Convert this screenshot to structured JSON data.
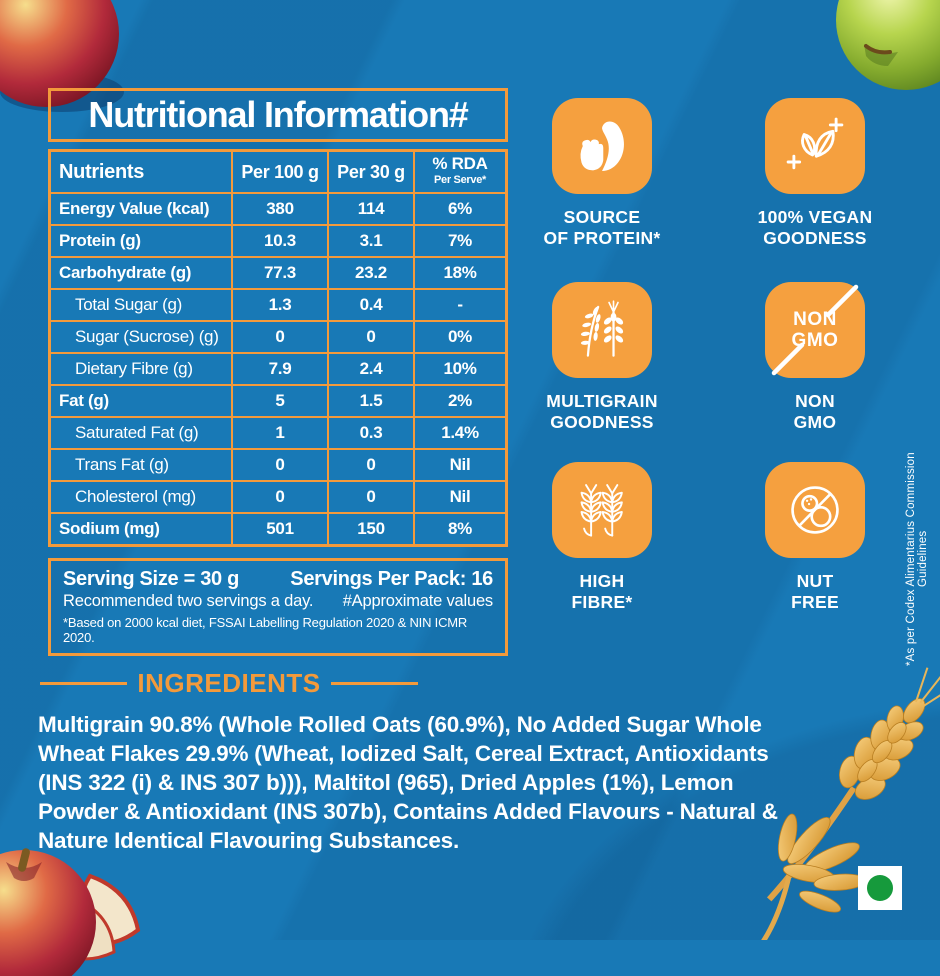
{
  "colors": {
    "background_blue": "#1879B6",
    "accent_orange": "#F39A3B",
    "badge_orange": "#F5A03F",
    "text_white": "#FFFFFF",
    "veg_green": "#169A3C"
  },
  "table": {
    "title": "Nutritional Information#",
    "header": {
      "col0": "Nutrients",
      "col1": "Per 100 g",
      "col2": "Per 30 g",
      "rda_line1": "% RDA",
      "rda_line2": "Per Serve*"
    },
    "rows": [
      {
        "name": "Energy Value (kcal)",
        "per100": "380",
        "per30": "114",
        "rda": "6%",
        "emphasis": true,
        "indent": false
      },
      {
        "name": "Protein (g)",
        "per100": "10.3",
        "per30": "3.1",
        "rda": "7%",
        "emphasis": true,
        "indent": false
      },
      {
        "name": "Carbohydrate (g)",
        "per100": "77.3",
        "per30": "23.2",
        "rda": "18%",
        "emphasis": true,
        "indent": false
      },
      {
        "name": "Total Sugar (g)",
        "per100": "1.3",
        "per30": "0.4",
        "rda": "-",
        "emphasis": false,
        "indent": true
      },
      {
        "name": "Sugar (Sucrose) (g)",
        "per100": "0",
        "per30": "0",
        "rda": "0%",
        "emphasis": false,
        "indent": true
      },
      {
        "name": "Dietary Fibre (g)",
        "per100": "7.9",
        "per30": "2.4",
        "rda": "10%",
        "emphasis": false,
        "indent": true
      },
      {
        "name": "Fat (g)",
        "per100": "5",
        "per30": "1.5",
        "rda": "2%",
        "emphasis": true,
        "indent": false
      },
      {
        "name": "Saturated Fat (g)",
        "per100": "1",
        "per30": "0.3",
        "rda": "1.4%",
        "emphasis": false,
        "indent": true
      },
      {
        "name": "Trans Fat (g)",
        "per100": "0",
        "per30": "0",
        "rda": "Nil",
        "emphasis": false,
        "indent": true
      },
      {
        "name": "Cholesterol (mg)",
        "per100": "0",
        "per30": "0",
        "rda": "Nil",
        "emphasis": false,
        "indent": true
      },
      {
        "name": "Sodium (mg)",
        "per100": "501",
        "per30": "150",
        "rda": "8%",
        "emphasis": true,
        "indent": false
      }
    ],
    "footer": {
      "serving_size": "Serving Size = 30 g",
      "servings_per_pack": "Servings Per Pack: 16",
      "recommendation": "Recommended two servings a day.",
      "approx": "#Approximate values",
      "basis": "*Based on 2000 kcal diet, FSSAI Labelling Regulation 2020 & NIN ICMR 2020."
    }
  },
  "badges": [
    {
      "id": "source-of-protein",
      "icon": "bicep-icon",
      "lines": [
        "SOURCE",
        "OF PROTEIN*"
      ]
    },
    {
      "id": "vegan-goodness",
      "icon": "vegan-leaves-icon",
      "lines": [
        "100% VEGAN",
        "GOODNESS"
      ]
    },
    {
      "id": "multigrain-goodness",
      "icon": "multigrain-icon",
      "lines": [
        "MULTIGRAIN",
        "GOODNESS"
      ]
    },
    {
      "id": "non-gmo",
      "icon": "non-gmo-icon",
      "icon_text": [
        "NON",
        "GMO"
      ],
      "lines": [
        "NON",
        "GMO"
      ]
    },
    {
      "id": "high-fibre",
      "icon": "wheat-fibre-icon",
      "lines": [
        "HIGH",
        "FIBRE*"
      ]
    },
    {
      "id": "nut-free",
      "icon": "nut-free-icon",
      "lines": [
        "NUT",
        "FREE"
      ]
    }
  ],
  "ingredients": {
    "heading": "INGREDIENTS",
    "text": "Multigrain 90.8% (Whole Rolled Oats (60.9%), No Added Sugar Whole Wheat Flakes 29.9% (Wheat, Iodized Salt, Cereal Extract, Antioxidants (INS 322 (i) & INS 307 b))), Maltitol (965), Dried Apples (1%), Lemon Powder & Antioxidant (INS 307b), Contains Added Flavours - Natural & Nature Identical Flavouring Substances."
  },
  "side_note": "*As per Codex Alimentarius Commission Guidelines"
}
